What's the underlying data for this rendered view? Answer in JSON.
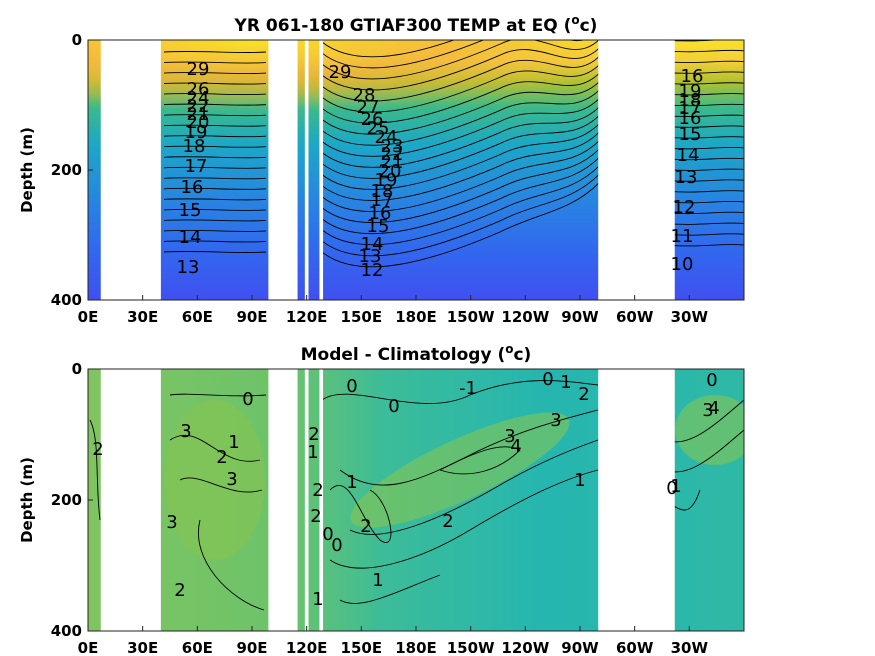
{
  "chart_data": [
    {
      "type": "heatmap",
      "title_main": "YR 061-180 GTIAF300 TEMP at EQ (",
      "title_sup": "o",
      "title_end": "c)",
      "ylabel": "Depth (m)",
      "xticks": [
        "0E",
        "30E",
        "60E",
        "90E",
        "120E",
        "150E",
        "180E",
        "150W",
        "120W",
        "90W",
        "60W",
        "30W"
      ],
      "yticks": [
        "0",
        "200",
        "400"
      ],
      "xlim": [
        0,
        360
      ],
      "ylim": [
        0,
        400
      ],
      "y_reversed": true,
      "grid": false,
      "colormap": "parula",
      "land_gaps_lon": [
        [
          7,
          40
        ],
        [
          99,
          115
        ],
        [
          119,
          121
        ],
        [
          127,
          129
        ],
        [
          280,
          322
        ]
      ],
      "contour_levels": [
        29,
        28,
        27,
        26,
        25,
        24,
        23,
        22,
        21,
        20,
        19,
        18,
        17,
        16,
        15,
        14,
        13,
        12,
        11,
        10
      ],
      "contour_labels": [
        "29",
        "28",
        "27",
        "26",
        "25",
        "24",
        "23",
        "22",
        "21",
        "20",
        "19",
        "18",
        "17",
        "16",
        "15",
        "14",
        "13",
        "12",
        "11",
        "10"
      ]
    },
    {
      "type": "heatmap",
      "title_main": "Model - Climatology (",
      "title_sup": "o",
      "title_end": "c)",
      "ylabel": "Depth (m)",
      "xticks": [
        "0E",
        "30E",
        "60E",
        "90E",
        "120E",
        "150E",
        "180E",
        "150W",
        "120W",
        "90W",
        "60W",
        "30W"
      ],
      "yticks": [
        "0",
        "200",
        "400"
      ],
      "xlim": [
        0,
        360
      ],
      "ylim": [
        0,
        400
      ],
      "y_reversed": true,
      "grid": false,
      "colormap": "parula",
      "land_gaps_lon": [
        [
          7,
          40
        ],
        [
          99,
          115
        ],
        [
          119,
          121
        ],
        [
          127,
          129
        ],
        [
          280,
          322
        ]
      ],
      "contour_levels": [
        -1,
        0,
        1,
        2,
        3,
        4
      ],
      "contour_labels": [
        "0",
        "1",
        "2",
        "3",
        "-1",
        "4",
        "2",
        "3",
        "1",
        "2",
        "0",
        "-1",
        "0",
        "1",
        "2",
        "3",
        "4"
      ]
    }
  ]
}
